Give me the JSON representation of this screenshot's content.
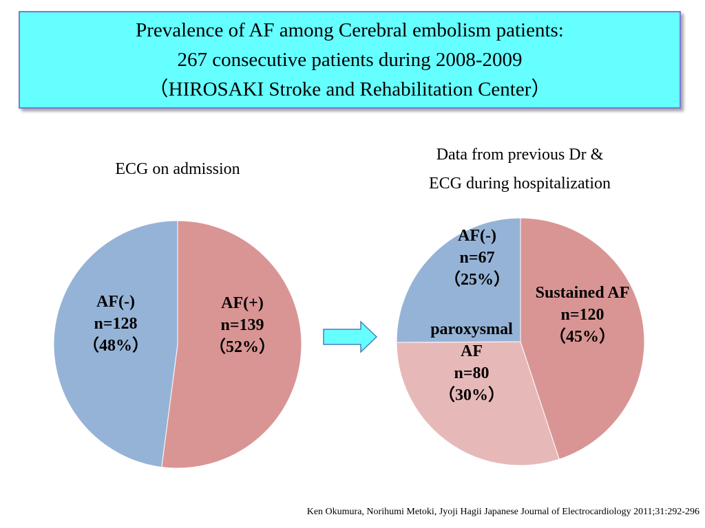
{
  "title": {
    "line1": "Prevalence of AF among Cerebral embolism patients:",
    "line2": "267 consecutive patients during 2008-2009",
    "line3": "（HIROSAKI Stroke and Rehabilitation Center）"
  },
  "left_subtitle": "ECG on admission",
  "right_subtitle": {
    "line1": "Data from previous Dr &",
    "line2": "ECG during hospitalization"
  },
  "citation": "Ken Okumura, Norihumi Metoki, Jyoji Hagii   Japanese Journal of  Electrocardiology 2011;31:292-296",
  "colors": {
    "title_bg": "#66ffff",
    "blue": "#95b3d7",
    "red": "#d99594",
    "pink": "#e6b9b8",
    "arrow": "#66ffff"
  },
  "chart_data": [
    {
      "type": "pie",
      "title": "ECG on admission",
      "series": [
        {
          "label_lines": [
            "AF(+)",
            "n=139",
            "（52%）"
          ],
          "value": 139,
          "percent": 52,
          "color": "#d99594"
        },
        {
          "label_lines": [
            "AF(-)",
            "n=128",
            "（48%）"
          ],
          "value": 128,
          "percent": 48,
          "color": "#95b3d7"
        }
      ]
    },
    {
      "type": "pie",
      "title": "Data from previous Dr & ECG during hospitalization",
      "series": [
        {
          "label_lines": [
            "Sustained AF",
            "n=120",
            "（45%）"
          ],
          "value": 120,
          "percent": 45,
          "color": "#d99594"
        },
        {
          "label_lines": [
            "paroxysmal",
            "AF",
            "n=80",
            "（30%）"
          ],
          "value": 80,
          "percent": 30,
          "color": "#e6b9b8"
        },
        {
          "label_lines": [
            "AF(-)",
            "n=67",
            "（25%）"
          ],
          "value": 67,
          "percent": 25,
          "color": "#95b3d7"
        }
      ]
    }
  ]
}
